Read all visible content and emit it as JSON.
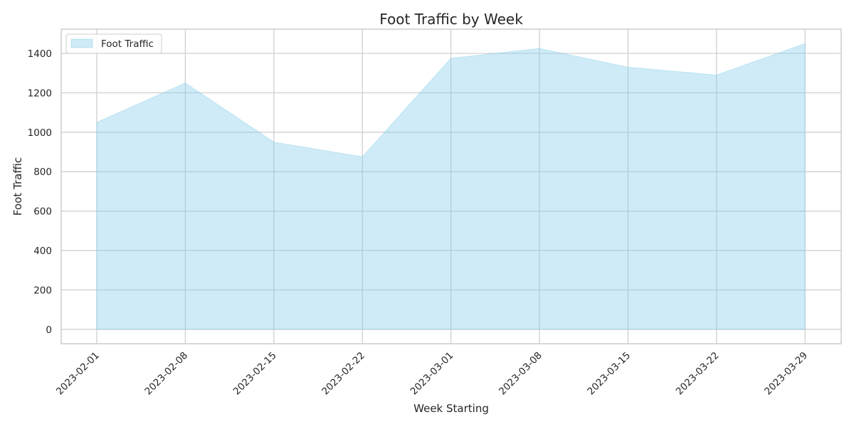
{
  "chart_data": {
    "type": "area",
    "title": "Foot Traffic by Week",
    "xlabel": "Week Starting",
    "ylabel": "Foot Traffic",
    "x": [
      "2023-02-01",
      "2023-02-08",
      "2023-02-15",
      "2023-02-22",
      "2023-03-01",
      "2023-03-08",
      "2023-03-15",
      "2023-03-22",
      "2023-03-29"
    ],
    "series": [
      {
        "name": "Foot Traffic",
        "values": [
          1050,
          1250,
          950,
          875,
          1375,
          1425,
          1330,
          1290,
          1450
        ]
      }
    ],
    "yticks": [
      0,
      200,
      400,
      600,
      800,
      1000,
      1200,
      1400
    ],
    "ylim": [
      -73,
      1523
    ],
    "grid": true,
    "legend_position": "top-left",
    "colors": {
      "fill": "#87ceeb",
      "grid": "#cccccc",
      "text": "#262626",
      "background": "#ffffff"
    }
  }
}
